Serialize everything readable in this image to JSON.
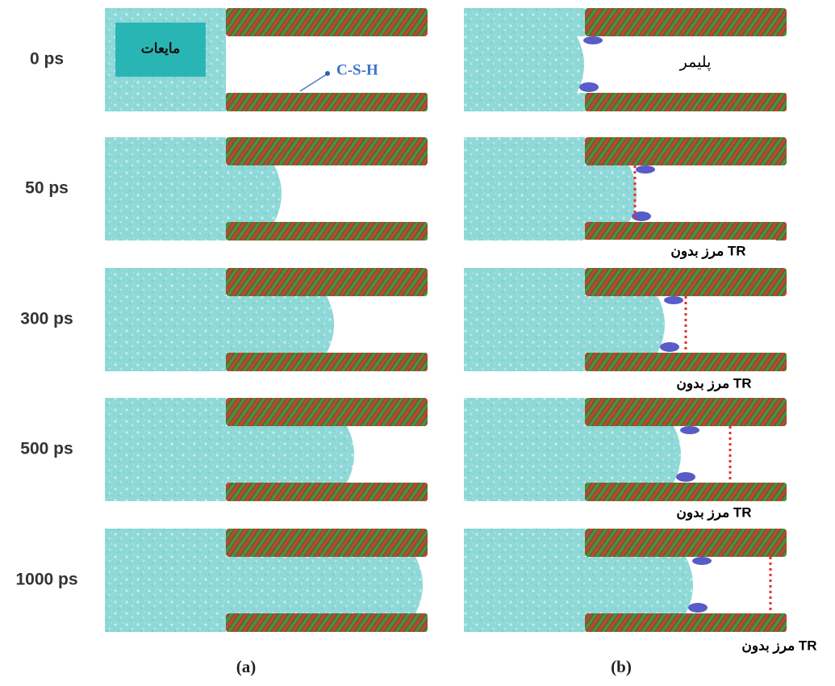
{
  "time_labels": [
    "0 ps",
    "50 ps",
    "300 ps",
    "500 ps",
    "1000 ps"
  ],
  "panel_a": {
    "liquid_label": "مایعات",
    "csh_label": "C-S-H",
    "caption": "(a)"
  },
  "panel_b": {
    "polymer_label": "پلیمر",
    "boundary_labels": [
      "مرز بدون TR",
      "مرز بدون TR",
      "مرز بدون TR",
      "مرز بدون TR"
    ],
    "caption": "(b)"
  }
}
